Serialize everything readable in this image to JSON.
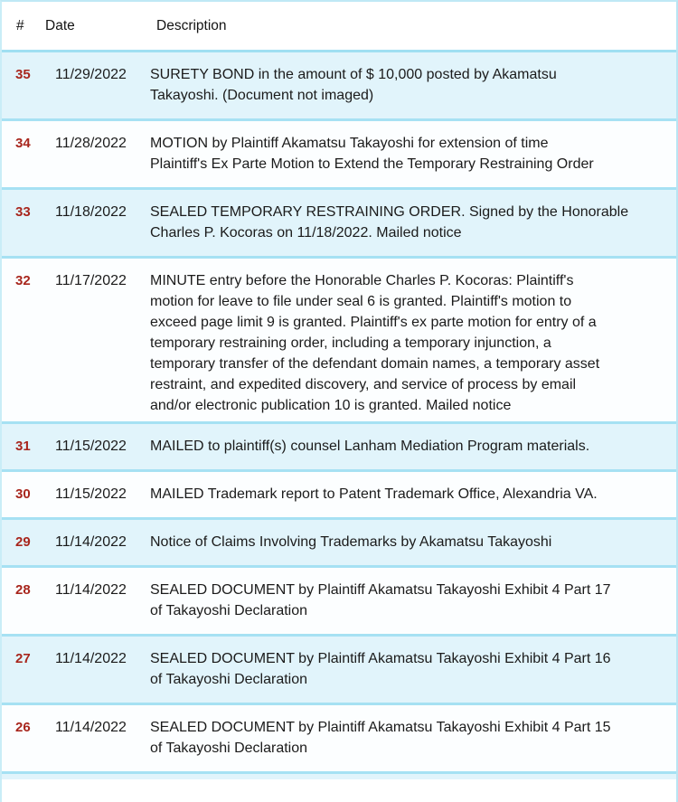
{
  "table": {
    "columns": [
      {
        "key": "num",
        "label": "#"
      },
      {
        "key": "date",
        "label": "Date"
      },
      {
        "key": "desc",
        "label": "Description"
      }
    ],
    "rows": [
      {
        "num": "35",
        "date": "11/29/2022",
        "desc": "SURETY BOND in the amount of $ 10,000 posted by Akamatsu\nTakayoshi. (Document not imaged)"
      },
      {
        "num": "34",
        "date": "11/28/2022",
        "desc": "MOTION by Plaintiff Akamatsu Takayoshi for extension of time\nPlaintiff's Ex Parte Motion to Extend the Temporary Restraining Order"
      },
      {
        "num": "33",
        "date": "11/18/2022",
        "desc": "SEALED TEMPORARY RESTRAINING ORDER. Signed by the Honorable\nCharles P. Kocoras on 11/18/2022. Mailed notice"
      },
      {
        "num": "32",
        "date": "11/17/2022",
        "desc": "MINUTE entry before the Honorable Charles P. Kocoras: Plaintiff's\nmotion for leave to file under seal 6 is granted. Plaintiff's motion to\nexceed page limit 9 is granted. Plaintiff's ex parte motion for entry of a\ntemporary restraining order, including a temporary injunction, a\ntemporary transfer of the defendant domain names, a temporary asset\nrestraint, and expedited discovery, and service of process by email\nand/or electronic publication 10 is granted. Mailed notice"
      },
      {
        "num": "31",
        "date": "11/15/2022",
        "desc": "MAILED to plaintiff(s) counsel Lanham Mediation Program materials."
      },
      {
        "num": "30",
        "date": "11/15/2022",
        "desc": "MAILED Trademark report to Patent Trademark Office, Alexandria VA."
      },
      {
        "num": "29",
        "date": "11/14/2022",
        "desc": "Notice of Claims Involving Trademarks by Akamatsu Takayoshi"
      },
      {
        "num": "28",
        "date": "11/14/2022",
        "desc": "SEALED DOCUMENT by Plaintiff Akamatsu Takayoshi Exhibit 4 Part 17\nof Takayoshi Declaration"
      },
      {
        "num": "27",
        "date": "11/14/2022",
        "desc": "SEALED DOCUMENT by Plaintiff Akamatsu Takayoshi Exhibit 4 Part 16\nof Takayoshi Declaration"
      },
      {
        "num": "26",
        "date": "11/14/2022",
        "desc": "SEALED DOCUMENT by Plaintiff Akamatsu Takayoshi Exhibit 4 Part 15\nof Takayoshi Declaration"
      }
    ]
  },
  "colors": {
    "row_alt_bg": "#e1f4fb",
    "row_plain_bg": "#fcfeff",
    "separator": "#a6e1f3",
    "docket_number": "#a8261d",
    "body_text": "#1b1b1b"
  }
}
